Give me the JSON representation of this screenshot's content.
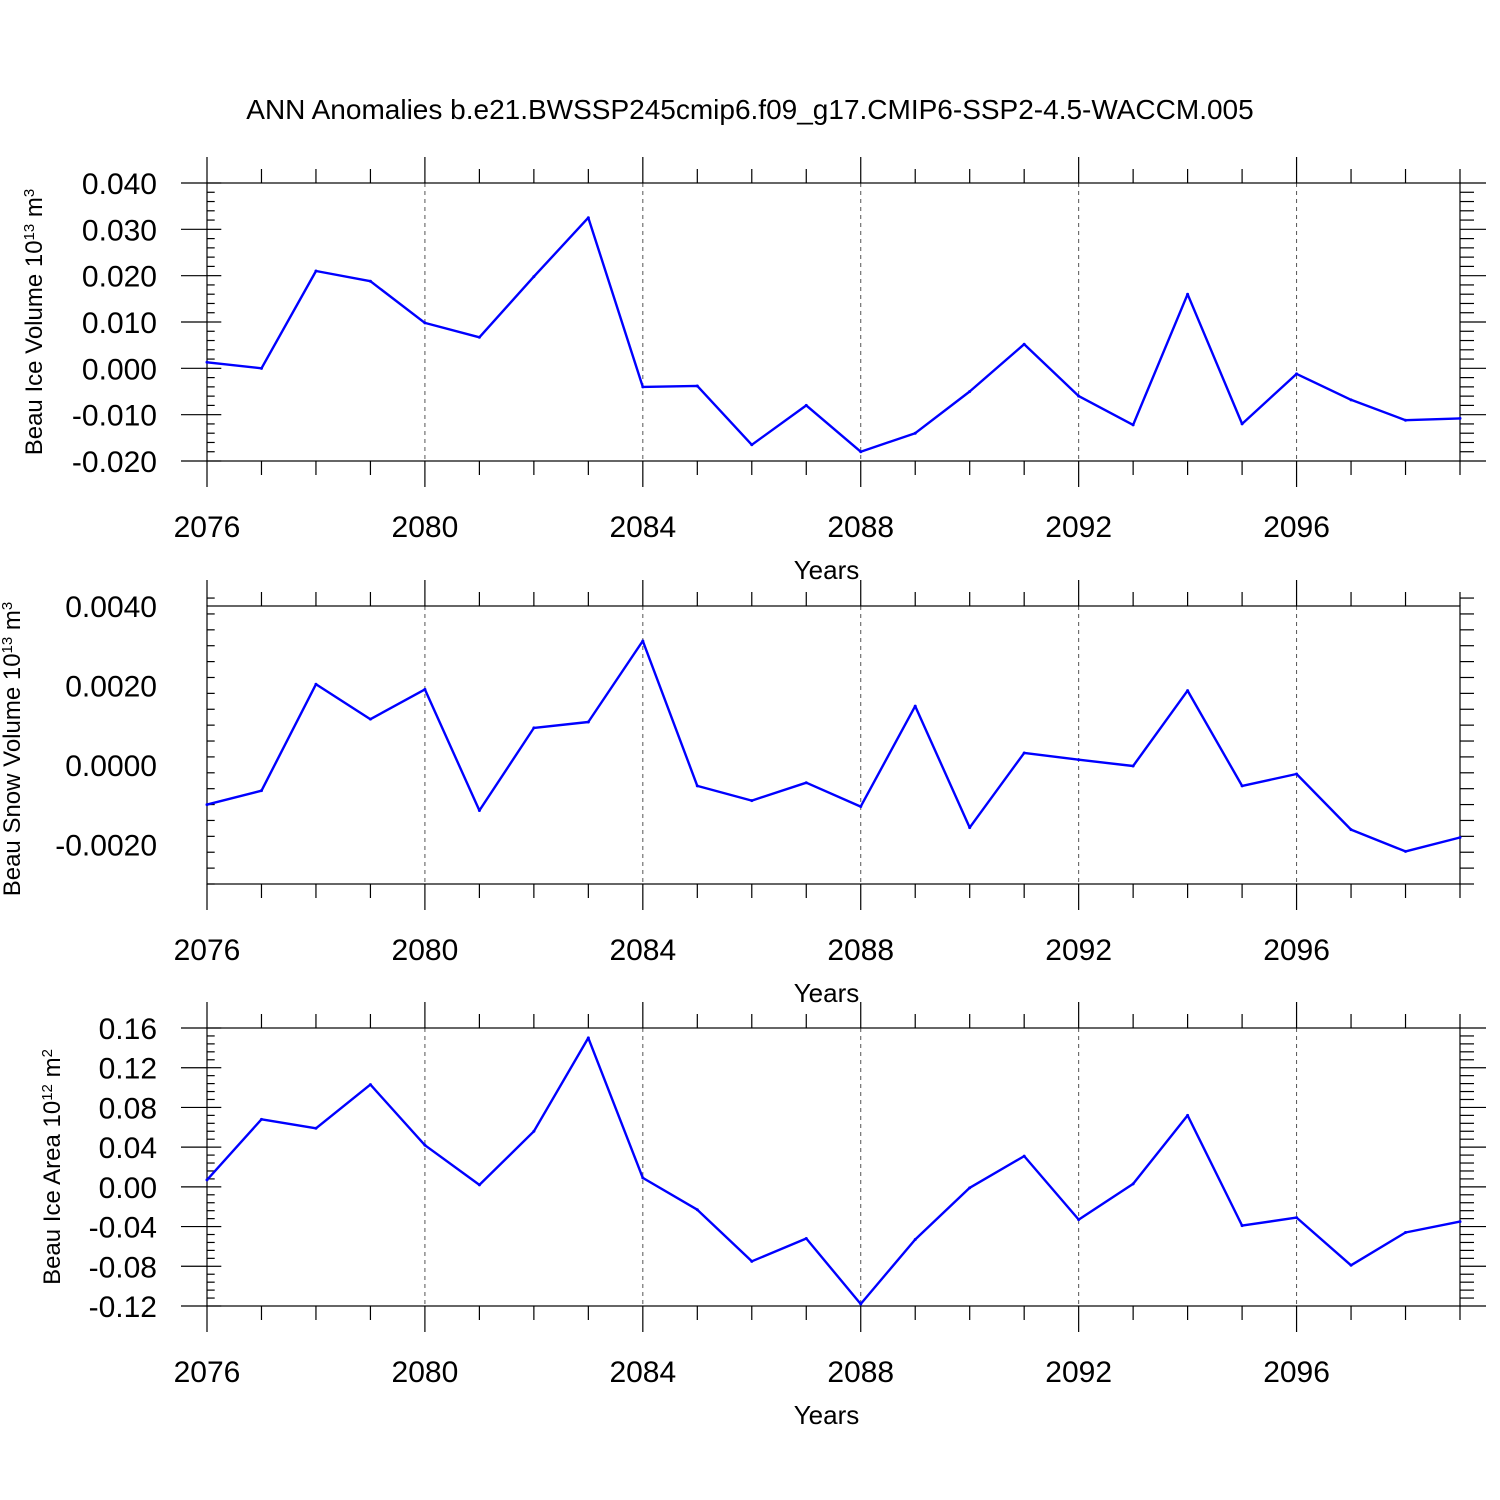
{
  "chart_data": [
    {
      "type": "line",
      "title": "ANN Anomalies b.e21.BWSSP245cmip6.f09_g17.CMIP6-SSP2-4.5-WACCM.005",
      "ylabel": "Beau Ice Volume 10",
      "ylabel_exp": "13",
      "ylabel_unit": " m",
      "ylabel_unit_exp": "3",
      "xlabel": "Years",
      "xlim": [
        2076,
        2099
      ],
      "ylim": [
        -0.02,
        0.04
      ],
      "xticks": [
        "2076",
        "2080",
        "2084",
        "2088",
        "2092",
        "2096"
      ],
      "yticks": [
        "-0.020",
        "-0.010",
        "0.000",
        "0.010",
        "0.020",
        "0.030",
        "0.040"
      ],
      "grid": "vertical dashed at labeled years",
      "color": "#0000ff",
      "x": [
        2076,
        2077,
        2078,
        2079,
        2080,
        2081,
        2082,
        2083,
        2084,
        2085,
        2086,
        2087,
        2088,
        2089,
        2090,
        2091,
        2092,
        2093,
        2094,
        2095,
        2096,
        2097,
        2098,
        2099
      ],
      "y": [
        0.0013,
        0.0,
        0.021,
        0.0188,
        0.0098,
        0.0067,
        0.0198,
        0.0325,
        -0.004,
        -0.0038,
        -0.0165,
        -0.008,
        -0.018,
        -0.014,
        -0.005,
        0.0052,
        -0.006,
        -0.0122,
        0.016,
        -0.012,
        -0.0012,
        -0.0068,
        -0.0112,
        -0.0108
      ]
    },
    {
      "type": "line",
      "ylabel": "Beau Snow Volume 10",
      "ylabel_exp": "13",
      "ylabel_unit": " m",
      "ylabel_unit_exp": "3",
      "xlabel": "Years",
      "xlim": [
        2076,
        2099
      ],
      "ylim": [
        -0.003,
        0.004
      ],
      "xticks": [
        "2076",
        "2080",
        "2084",
        "2088",
        "2092",
        "2096"
      ],
      "yticks": [
        "-0.0020",
        "0.0000",
        "0.0020",
        "0.0040"
      ],
      "grid": "vertical dashed at labeled years",
      "color": "#0000ff",
      "x": [
        2076,
        2077,
        2078,
        2079,
        2080,
        2081,
        2082,
        2083,
        2084,
        2085,
        2086,
        2087,
        2088,
        2089,
        2090,
        2091,
        2092,
        2093,
        2094,
        2095,
        2096,
        2097,
        2098,
        2099
      ],
      "y": [
        -0.001,
        -0.00065,
        0.00203,
        0.00115,
        0.0019,
        -0.00115,
        0.00093,
        0.00108,
        0.00312,
        -0.00053,
        -0.0009,
        -0.00045,
        -0.00105,
        0.00148,
        -0.00158,
        0.0003,
        0.00013,
        -3e-05,
        0.00187,
        -0.00053,
        -0.00023,
        -0.00163,
        -0.00218,
        -0.00183
      ]
    },
    {
      "type": "line",
      "ylabel": "Beau Ice Area 10",
      "ylabel_exp": "12",
      "ylabel_unit": " m",
      "ylabel_unit_exp": "2",
      "xlabel": "Years",
      "xlim": [
        2076,
        2099
      ],
      "ylim": [
        -0.12,
        0.16
      ],
      "xticks": [
        "2076",
        "2080",
        "2084",
        "2088",
        "2092",
        "2096"
      ],
      "yticks": [
        "-0.12",
        "-0.08",
        "-0.04",
        "0.00",
        "0.04",
        "0.08",
        "0.12",
        "0.16"
      ],
      "grid": "vertical dashed at labeled years",
      "color": "#0000ff",
      "x": [
        2076,
        2077,
        2078,
        2079,
        2080,
        2081,
        2082,
        2083,
        2084,
        2085,
        2086,
        2087,
        2088,
        2089,
        2090,
        2091,
        2092,
        2093,
        2094,
        2095,
        2096,
        2097,
        2098,
        2099
      ],
      "y": [
        0.007,
        0.068,
        0.059,
        0.103,
        0.042,
        0.002,
        0.056,
        0.15,
        0.009,
        -0.023,
        -0.075,
        -0.052,
        -0.118,
        -0.053,
        -0.001,
        0.031,
        -0.033,
        0.003,
        0.072,
        -0.039,
        -0.031,
        -0.079,
        -0.046,
        -0.035
      ]
    }
  ]
}
